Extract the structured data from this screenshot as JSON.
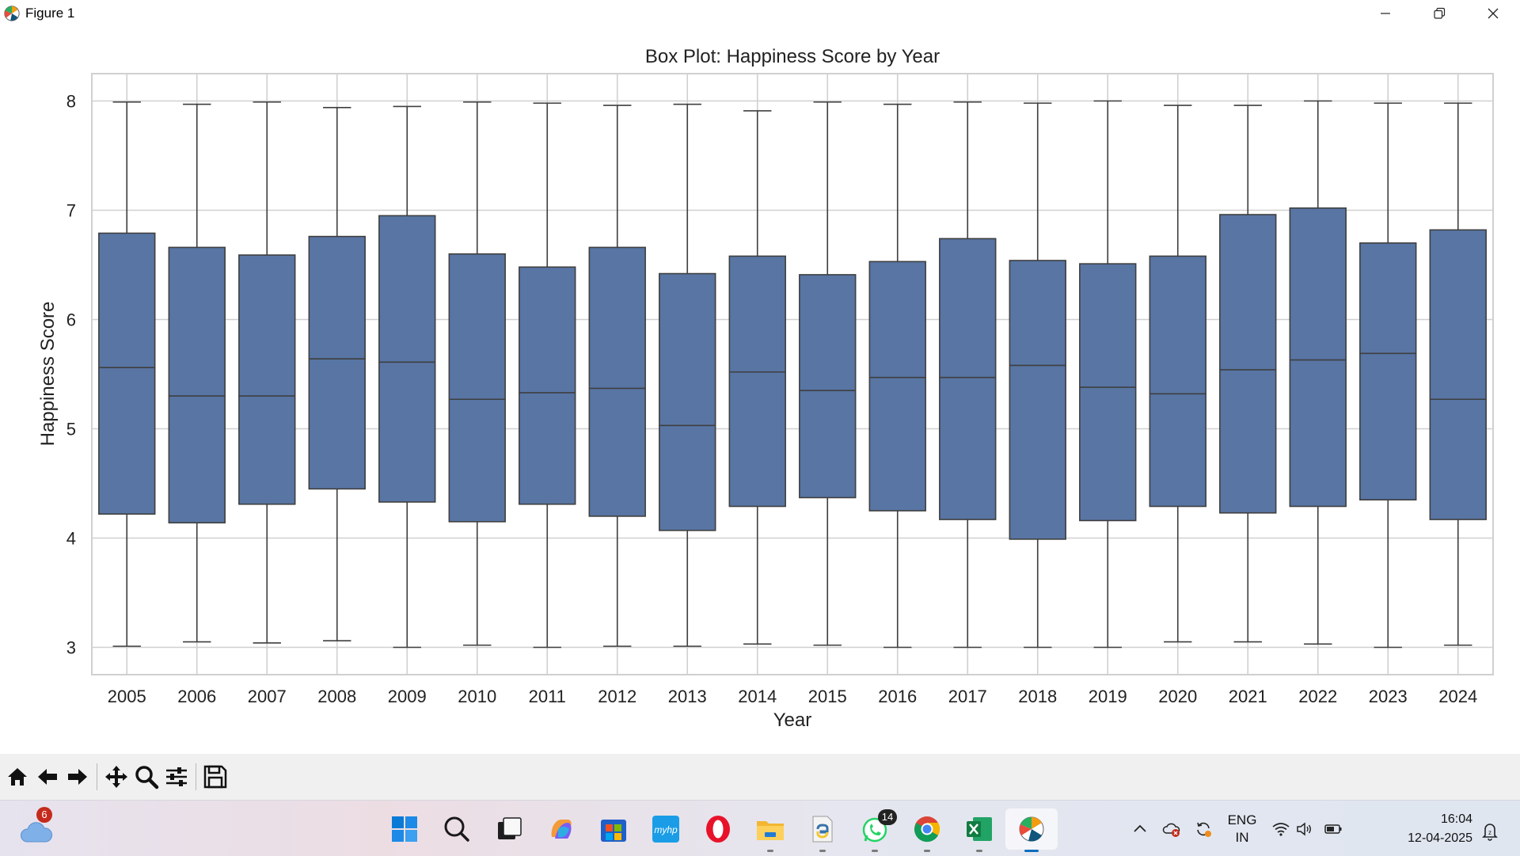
{
  "window": {
    "title": "Figure 1"
  },
  "chart_data": {
    "type": "box",
    "title": "Box Plot: Happiness Score by Year",
    "xlabel": "Year",
    "ylabel": "Happiness Score",
    "ylim": [
      2.75,
      8.25
    ],
    "yticks": [
      3,
      4,
      5,
      6,
      7,
      8
    ],
    "grid": true,
    "box_color": "#5875a4",
    "categories": [
      "2005",
      "2006",
      "2007",
      "2008",
      "2009",
      "2010",
      "2011",
      "2012",
      "2013",
      "2014",
      "2015",
      "2016",
      "2017",
      "2018",
      "2019",
      "2020",
      "2021",
      "2022",
      "2023",
      "2024"
    ],
    "boxes": [
      {
        "min": 3.01,
        "q1": 4.22,
        "median": 5.56,
        "q3": 6.79,
        "max": 7.99
      },
      {
        "min": 3.05,
        "q1": 4.14,
        "median": 5.3,
        "q3": 6.66,
        "max": 7.97
      },
      {
        "min": 3.04,
        "q1": 4.31,
        "median": 5.3,
        "q3": 6.59,
        "max": 7.99
      },
      {
        "min": 3.06,
        "q1": 4.45,
        "median": 5.64,
        "q3": 6.76,
        "max": 7.94
      },
      {
        "min": 3.0,
        "q1": 4.33,
        "median": 5.61,
        "q3": 6.95,
        "max": 7.95
      },
      {
        "min": 3.02,
        "q1": 4.15,
        "median": 5.27,
        "q3": 6.6,
        "max": 7.99
      },
      {
        "min": 3.0,
        "q1": 4.31,
        "median": 5.33,
        "q3": 6.48,
        "max": 7.98
      },
      {
        "min": 3.01,
        "q1": 4.2,
        "median": 5.37,
        "q3": 6.66,
        "max": 7.96
      },
      {
        "min": 3.01,
        "q1": 4.07,
        "median": 5.03,
        "q3": 6.42,
        "max": 7.97
      },
      {
        "min": 3.03,
        "q1": 4.29,
        "median": 5.52,
        "q3": 6.58,
        "max": 7.91
      },
      {
        "min": 3.02,
        "q1": 4.37,
        "median": 5.35,
        "q3": 6.41,
        "max": 7.99
      },
      {
        "min": 3.0,
        "q1": 4.25,
        "median": 5.47,
        "q3": 6.53,
        "max": 7.97
      },
      {
        "min": 3.0,
        "q1": 4.17,
        "median": 5.47,
        "q3": 6.74,
        "max": 7.99
      },
      {
        "min": 3.0,
        "q1": 3.99,
        "median": 5.58,
        "q3": 6.54,
        "max": 7.98
      },
      {
        "min": 3.0,
        "q1": 4.16,
        "median": 5.38,
        "q3": 6.51,
        "max": 8.0
      },
      {
        "min": 3.05,
        "q1": 4.29,
        "median": 5.32,
        "q3": 6.58,
        "max": 7.96
      },
      {
        "min": 3.05,
        "q1": 4.23,
        "median": 5.54,
        "q3": 6.96,
        "max": 7.96
      },
      {
        "min": 3.03,
        "q1": 4.29,
        "median": 5.63,
        "q3": 7.02,
        "max": 8.0
      },
      {
        "min": 3.0,
        "q1": 4.35,
        "median": 5.69,
        "q3": 6.7,
        "max": 7.98
      },
      {
        "min": 3.02,
        "q1": 4.17,
        "median": 5.27,
        "q3": 6.82,
        "max": 7.98
      }
    ]
  },
  "toolbar": {
    "icons": [
      "home-icon",
      "back-arrow-icon",
      "forward-arrow-icon",
      "pan-icon",
      "zoom-icon",
      "configure-subplots-icon",
      "save-icon"
    ]
  },
  "taskbar": {
    "weather_badge": "6",
    "whatsapp_badge": "14",
    "icons": [
      "start-icon",
      "search-icon",
      "task-view-icon",
      "copilot-icon",
      "store-icon",
      "myhp-icon",
      "opera-icon",
      "file-explorer-icon",
      "python-idle-icon",
      "whatsapp-icon",
      "chrome-icon",
      "excel-icon",
      "matplotlib-icon"
    ],
    "lang_line1": "ENG",
    "lang_line2": "IN",
    "time": "16:04",
    "date": "12-04-2025"
  }
}
